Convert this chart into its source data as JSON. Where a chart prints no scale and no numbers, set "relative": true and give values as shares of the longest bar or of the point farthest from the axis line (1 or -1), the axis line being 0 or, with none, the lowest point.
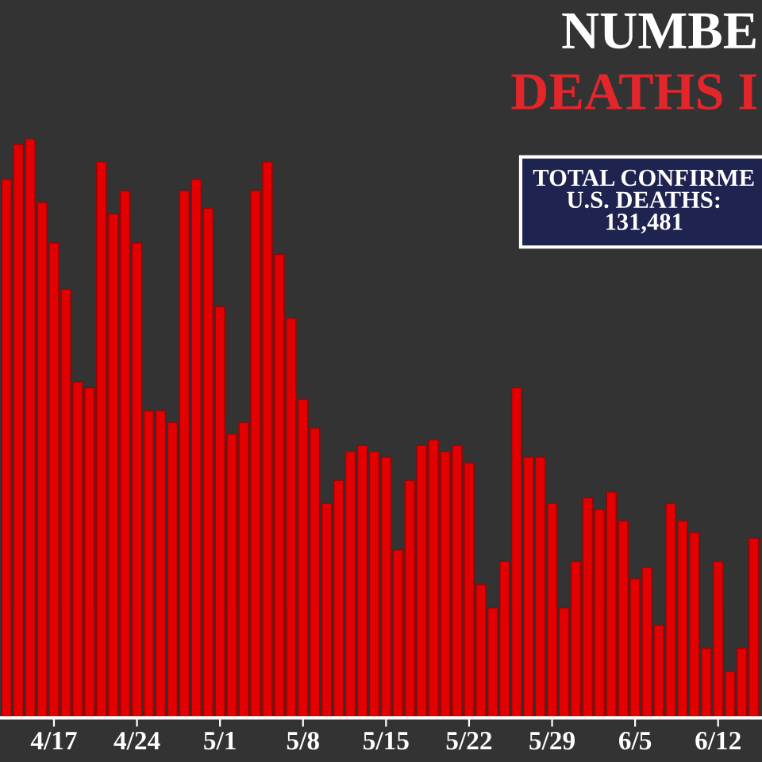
{
  "chart_data": {
    "type": "bar",
    "title": "NUMBE",
    "subtitle": "DEATHS I",
    "relative": true,
    "color": "#e30000",
    "annotations": [
      "TOTAL CONFIRME\nU.S. DEATHS:\n131,481"
    ],
    "categories": [
      null,
      null,
      null,
      null,
      "4/17",
      null,
      null,
      null,
      null,
      null,
      null,
      "4/24",
      null,
      null,
      null,
      null,
      null,
      null,
      "5/1",
      null,
      null,
      null,
      null,
      null,
      null,
      "5/8",
      null,
      null,
      null,
      null,
      null,
      null,
      "5/15",
      null,
      null,
      null,
      null,
      null,
      null,
      "5/22",
      null,
      null,
      null,
      null,
      null,
      null,
      "5/29",
      null,
      null,
      null,
      null,
      null,
      null,
      "6/5",
      null,
      null,
      null,
      null,
      null,
      null,
      "6/12",
      null,
      null,
      null
    ],
    "values": [
      0.93,
      0.99,
      1.0,
      0.89,
      0.82,
      0.74,
      0.58,
      0.57,
      0.96,
      0.87,
      0.91,
      0.82,
      0.53,
      0.53,
      0.51,
      0.91,
      0.93,
      0.88,
      0.71,
      0.49,
      0.51,
      0.91,
      0.96,
      0.8,
      0.69,
      0.55,
      0.5,
      0.37,
      0.41,
      0.46,
      0.47,
      0.46,
      0.45,
      0.29,
      0.41,
      0.47,
      0.48,
      0.46,
      0.47,
      0.44,
      0.23,
      0.19,
      0.27,
      0.57,
      0.45,
      0.45,
      0.37,
      0.19,
      0.27,
      0.38,
      0.36,
      0.39,
      0.34,
      0.24,
      0.26,
      0.16,
      0.37,
      0.34,
      0.32,
      0.12,
      0.27,
      0.08,
      0.12,
      0.31
    ]
  }
}
